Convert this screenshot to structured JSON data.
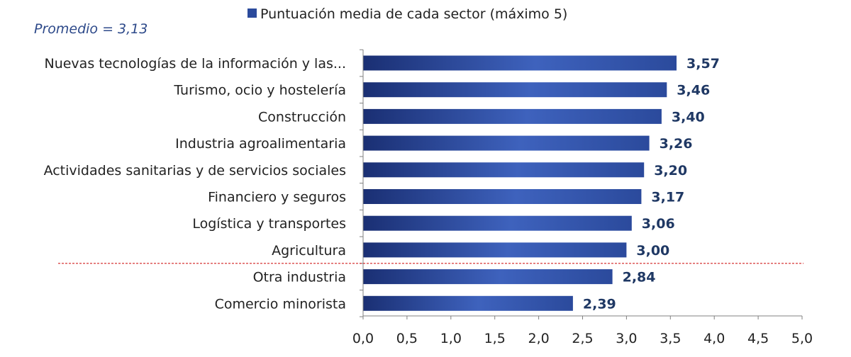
{
  "chart_data": {
    "type": "bar",
    "orientation": "horizontal",
    "categories": [
      "Nuevas tecnologías de la información y las...",
      "Turismo, ocio y hostelería",
      "Construcción",
      "Industria agroalimentaria",
      "Actividades sanitarias y de servicios sociales",
      "Financiero y seguros",
      "Logística y transportes",
      "Agricultura",
      "Otra industria",
      "Comercio minorista"
    ],
    "series": [
      {
        "name": "Puntuación media de cada sector (máximo 5)",
        "values": [
          3.57,
          3.46,
          3.4,
          3.26,
          3.2,
          3.17,
          3.06,
          3.0,
          2.84,
          2.39
        ],
        "value_labels": [
          "3,57",
          "3,46",
          "3,40",
          "3,26",
          "3,20",
          "3,17",
          "3,06",
          "3,00",
          "2,84",
          "2,39"
        ]
      }
    ],
    "xlim": [
      0,
      5
    ],
    "xticks": [
      0,
      0.5,
      1,
      1.5,
      2,
      2.5,
      3,
      3.5,
      4,
      4.5,
      5
    ],
    "xtick_labels": [
      "0,0",
      "0,5",
      "1,0",
      "1,5",
      "2,0",
      "2,5",
      "3,0",
      "3,5",
      "4,0",
      "4,5",
      "5,0"
    ],
    "annotation": "Promedio = 3,13",
    "reference_line": {
      "style": "dashed",
      "between_categories": [
        "Agricultura",
        "Otra industria"
      ]
    },
    "legend_placement": "top-center",
    "grid": false,
    "colors": {
      "bar": "#2b4a9c",
      "bar_light": "#3e62bd",
      "bar_dark": "#1a2f73",
      "reference_line": "#d42020",
      "axis": "#808080"
    }
  }
}
